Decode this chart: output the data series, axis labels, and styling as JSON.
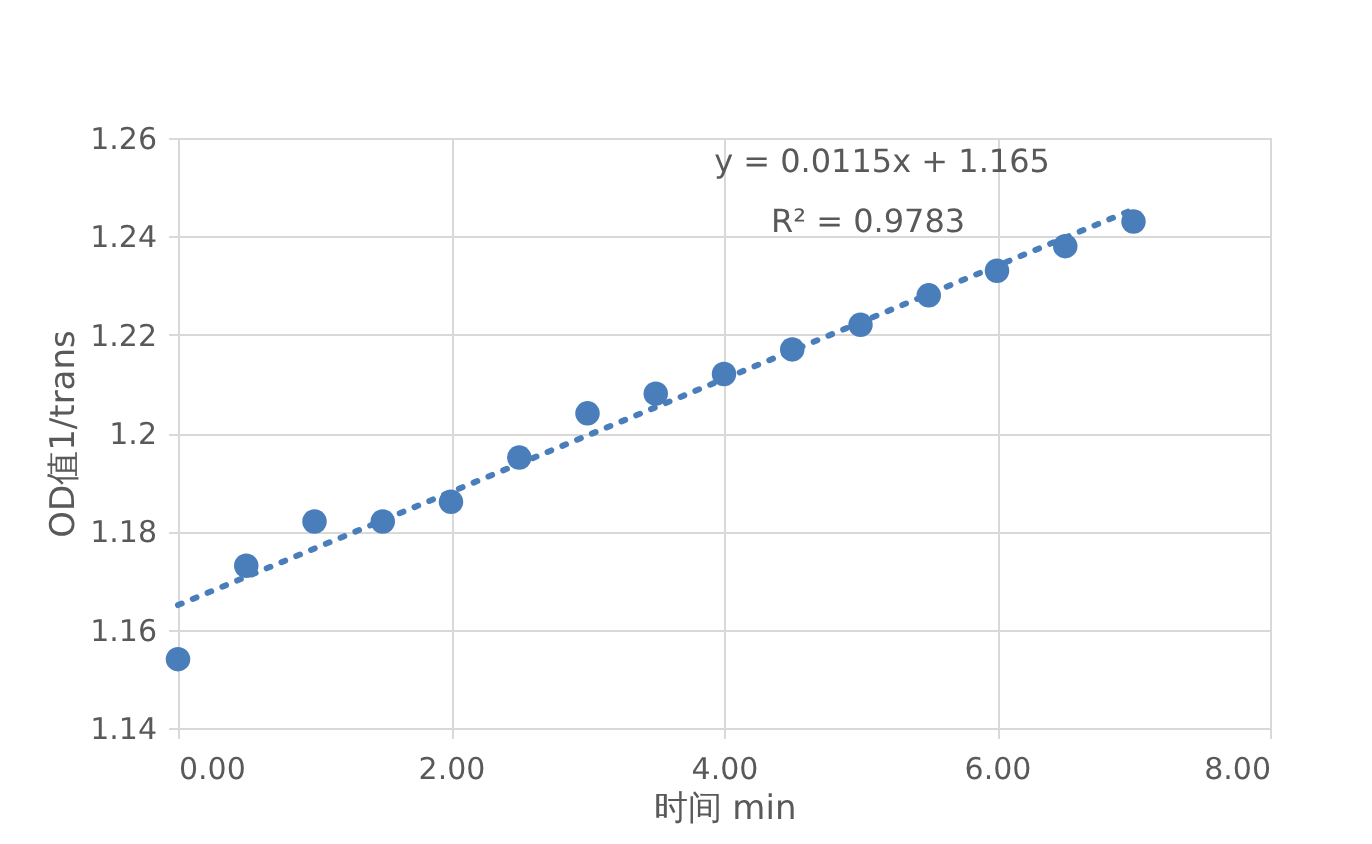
{
  "chart_data": {
    "type": "scatter",
    "xlabel": "时间 min",
    "ylabel": "OD值1/trans",
    "x": [
      0,
      0.5,
      1,
      1.5,
      2,
      2.5,
      3,
      3.5,
      4,
      4.5,
      5,
      5.5,
      6,
      6.5,
      7
    ],
    "series": [
      {
        "color": "#4a7ebb",
        "marker": "circle",
        "values": [
          1.154,
          1.173,
          1.182,
          1.182,
          1.186,
          1.195,
          1.204,
          1.208,
          1.212,
          1.217,
          1.222,
          1.228,
          1.233,
          1.238,
          1.243
        ]
      },
      {
        "type": "line",
        "color": "#4a7ebb",
        "line_style": "dotted",
        "marker": "none",
        "x": [
          0,
          7
        ],
        "values": [
          1.165,
          1.2455
        ]
      }
    ],
    "xlim": [
      0,
      8
    ],
    "xticks": [
      {
        "value": 0,
        "label": "0.00"
      },
      {
        "value": 2,
        "label": "2.00"
      },
      {
        "value": 4,
        "label": "4.00"
      },
      {
        "value": 6,
        "label": "6.00"
      },
      {
        "value": 8,
        "label": "8.00"
      }
    ],
    "ylim": [
      1.14,
      1.26
    ],
    "yticks": [
      1.14,
      1.16,
      1.18,
      1.2,
      1.22,
      1.24,
      1.26
    ],
    "grid": true,
    "annotations": [
      "y = 0.0115x + 1.165",
      "R² = 0.9783"
    ]
  }
}
